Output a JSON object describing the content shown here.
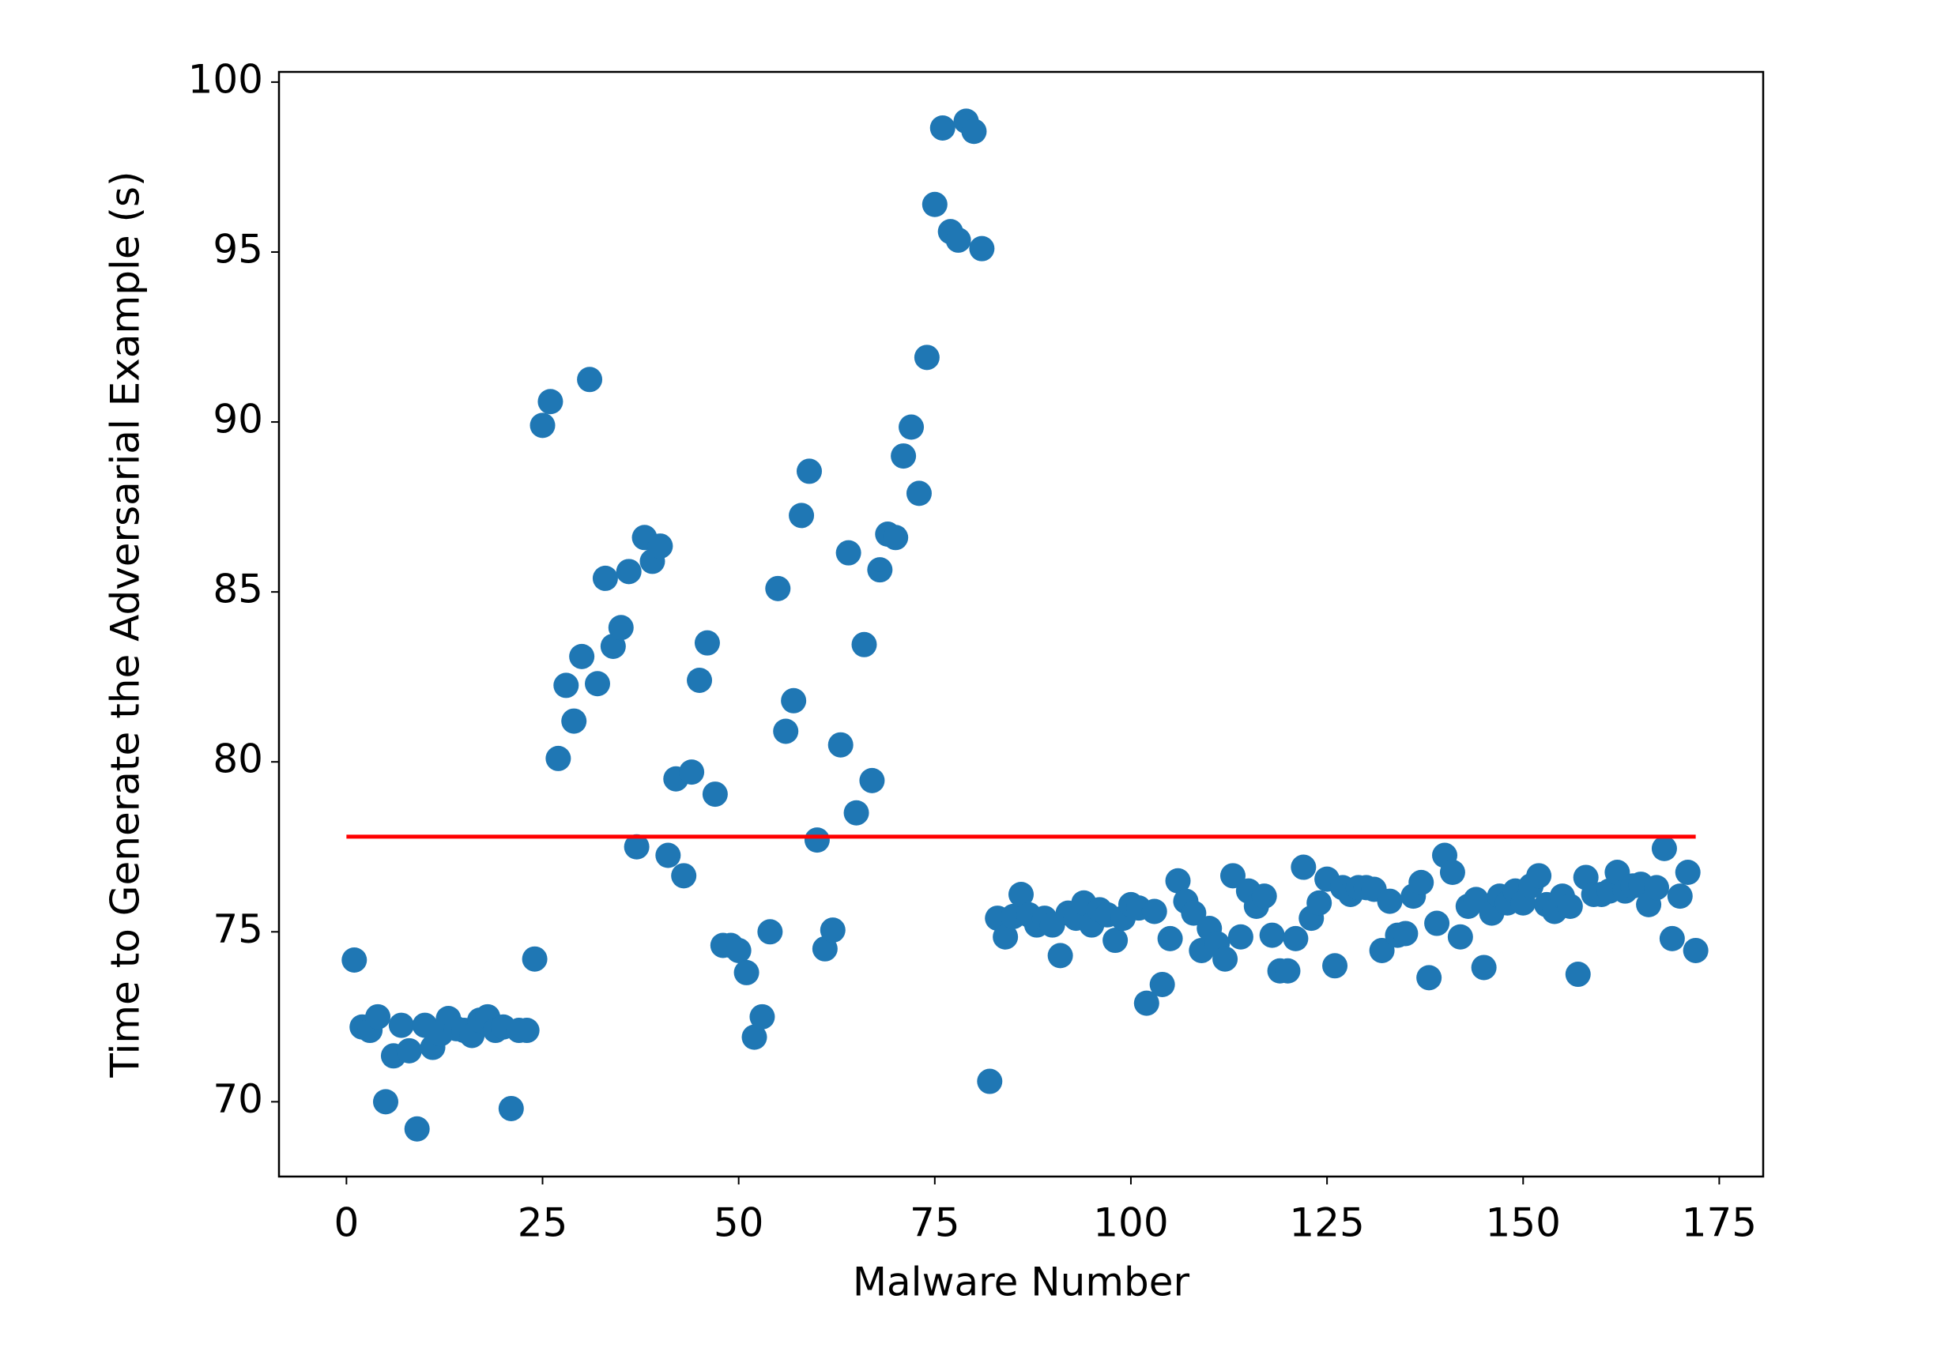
{
  "chart_data": {
    "type": "scatter",
    "x_label": "Malware Number",
    "y_label": "Time to Generate the Adversarial Example (s)",
    "color": "#1f77b4",
    "x": [
      1,
      2,
      3,
      4,
      5,
      6,
      7,
      8,
      9,
      10,
      11,
      12,
      13,
      14,
      15,
      16,
      17,
      18,
      19,
      20,
      21,
      22,
      23,
      24,
      25,
      26,
      27,
      28,
      29,
      30,
      31,
      32,
      33,
      34,
      35,
      36,
      37,
      38,
      39,
      40,
      41,
      42,
      43,
      44,
      45,
      46,
      47,
      48,
      49,
      50,
      51,
      52,
      53,
      54,
      55,
      56,
      57,
      58,
      59,
      60,
      61,
      62,
      63,
      64,
      65,
      66,
      67,
      68,
      69,
      70,
      71,
      72,
      73,
      74,
      75,
      76,
      77,
      78,
      79,
      80,
      81,
      82,
      83,
      84,
      85,
      86,
      87,
      88,
      89,
      90,
      91,
      92,
      93,
      94,
      95,
      96,
      97,
      98,
      99,
      100,
      101,
      102,
      103,
      104,
      105,
      106,
      107,
      108,
      109,
      110,
      111,
      112,
      113,
      114,
      115,
      116,
      117,
      118,
      119,
      120,
      121,
      122,
      123,
      124,
      125,
      126,
      127,
      128,
      129,
      130,
      131,
      132,
      133,
      134,
      135,
      136,
      137,
      138,
      139,
      140,
      141,
      142,
      143,
      144,
      145,
      146,
      147,
      148,
      149,
      150,
      151,
      152,
      153,
      154,
      155,
      156,
      157,
      158,
      159,
      160,
      161,
      162,
      163,
      164,
      165,
      166,
      167,
      168,
      169,
      170,
      171,
      172
    ],
    "values": [
      74.17,
      72.2,
      72.1,
      72.5,
      70.0,
      71.35,
      72.25,
      71.5,
      69.2,
      72.25,
      71.6,
      72.0,
      72.45,
      72.15,
      72.1,
      71.95,
      72.4,
      72.5,
      72.1,
      72.2,
      69.8,
      72.1,
      72.1,
      74.2,
      89.9,
      90.6,
      80.1,
      82.25,
      81.2,
      83.1,
      91.25,
      82.3,
      85.4,
      83.4,
      83.95,
      85.6,
      77.5,
      86.6,
      85.9,
      86.35,
      77.25,
      79.5,
      76.65,
      79.7,
      82.4,
      83.5,
      79.05,
      74.6,
      74.6,
      74.45,
      73.8,
      71.9,
      72.5,
      75.0,
      85.1,
      80.9,
      81.8,
      87.25,
      88.55,
      77.7,
      74.5,
      75.05,
      80.5,
      86.15,
      78.5,
      83.45,
      79.45,
      85.65,
      86.7,
      86.6,
      89.0,
      89.85,
      87.9,
      91.9,
      96.4,
      98.65,
      95.6,
      95.35,
      98.85,
      98.55,
      95.1,
      70.6,
      75.4,
      74.85,
      75.45,
      76.1,
      75.5,
      75.2,
      75.4,
      75.2,
      74.3,
      75.55,
      75.4,
      75.85,
      75.2,
      75.65,
      75.5,
      74.75,
      75.4,
      75.8,
      75.7,
      72.9,
      75.6,
      73.45,
      74.8,
      76.5,
      75.9,
      75.55,
      74.45,
      75.1,
      74.65,
      74.2,
      76.65,
      74.85,
      76.2,
      75.75,
      76.05,
      74.9,
      73.85,
      73.85,
      74.8,
      76.9,
      75.4,
      75.85,
      76.55,
      74.0,
      76.3,
      76.1,
      76.3,
      76.3,
      76.25,
      74.45,
      75.9,
      74.9,
      74.95,
      76.05,
      76.45,
      73.65,
      75.25,
      77.25,
      76.75,
      74.85,
      75.75,
      75.95,
      73.95,
      75.55,
      76.05,
      75.85,
      76.2,
      75.85,
      76.35,
      76.65,
      75.8,
      75.6,
      76.05,
      75.75,
      73.75,
      76.6,
      76.1,
      76.1,
      76.2,
      76.75,
      76.2,
      76.35,
      76.4,
      75.8,
      76.3,
      77.45,
      74.8,
      76.05,
      76.75,
      74.45
    ],
    "reference_line": {
      "x": [
        0,
        172
      ],
      "values": [
        77.8,
        77.8
      ],
      "color": "#ff0000"
    },
    "xlim": [
      -8.6,
      180.6
    ],
    "ylim": [
      67.8,
      100.3
    ],
    "xticks": [
      0,
      25,
      50,
      75,
      100,
      125,
      150,
      175
    ],
    "yticks": [
      70,
      75,
      80,
      85,
      90,
      95,
      100
    ]
  }
}
